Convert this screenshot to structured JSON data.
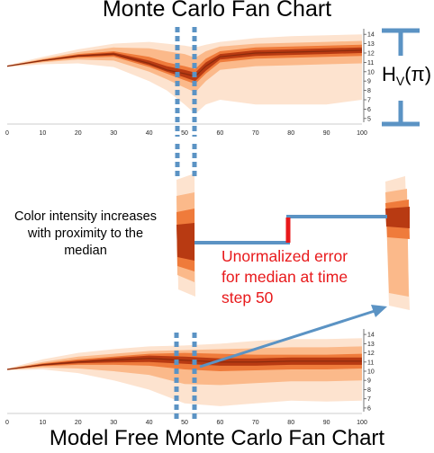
{
  "titles": {
    "top": "Monte Carlo Fan Chart",
    "bottom": "Model Free Monte Carlo Fan Chart"
  },
  "annotations": {
    "color_intensity_lines": [
      "Color intensity increases",
      "with proximity to the",
      "median"
    ],
    "error_lines": [
      "Unormalized error",
      "for median at time",
      "step 50"
    ],
    "hv_main": "H",
    "hv_sub": "V",
    "hv_tail": "(π)"
  },
  "colors": {
    "band_outer": "#fde3cf",
    "band_mid": "#fbb98a",
    "band_inner": "#ef7b3b",
    "band_core": "#b83a12",
    "highlight_blue": "#5b93c4",
    "error_red": "#e8191b"
  },
  "chart_data": [
    {
      "type": "area",
      "title": "Monte Carlo Fan Chart",
      "x_ticks": [
        0,
        10,
        20,
        30,
        40,
        50,
        60,
        70,
        80,
        90,
        100
      ],
      "y_ticks": [
        5,
        6,
        7,
        8,
        9,
        10,
        11,
        12,
        13,
        14
      ],
      "xlim": [
        0,
        100
      ],
      "ylim": [
        4.6,
        14.6
      ],
      "highlight_x": [
        48,
        53
      ],
      "x": [
        0,
        10,
        20,
        30,
        40,
        45,
        50,
        53,
        56,
        60,
        70,
        80,
        90,
        100
      ],
      "median": [
        10.6,
        11.2,
        11.7,
        11.9,
        10.9,
        10.2,
        9.8,
        9.5,
        10.6,
        11.6,
        12.0,
        12.1,
        12.2,
        12.3
      ],
      "bands": [
        {
          "name": "outer",
          "lower": [
            10.5,
            10.8,
            10.9,
            10.5,
            9.0,
            8.0,
            6.5,
            5.5,
            6.5,
            7.0,
            6.5,
            6.5,
            6.5,
            7.0
          ],
          "upper": [
            10.7,
            11.6,
            12.4,
            13.0,
            13.2,
            13.0,
            12.8,
            12.6,
            12.9,
            13.2,
            13.6,
            13.8,
            13.9,
            14.0
          ]
        },
        {
          "name": "mid",
          "lower": [
            10.55,
            11.0,
            11.3,
            11.2,
            10.0,
            9.2,
            8.3,
            7.8,
            9.0,
            10.2,
            10.6,
            10.7,
            10.8,
            10.9
          ],
          "upper": [
            10.65,
            11.4,
            12.1,
            12.6,
            12.5,
            12.2,
            11.9,
            11.5,
            12.2,
            12.7,
            13.0,
            13.1,
            13.2,
            13.3
          ]
        },
        {
          "name": "inner",
          "lower": [
            10.58,
            11.1,
            11.5,
            11.6,
            10.5,
            9.8,
            9.1,
            8.7,
            9.8,
            11.0,
            11.4,
            11.5,
            11.6,
            11.7
          ],
          "upper": [
            10.62,
            11.3,
            11.9,
            12.2,
            11.6,
            11.0,
            10.6,
            10.3,
            11.4,
            12.2,
            12.6,
            12.7,
            12.8,
            12.9
          ]
        },
        {
          "name": "core",
          "lower": [
            10.59,
            11.15,
            11.6,
            11.75,
            10.7,
            10.0,
            9.4,
            9.0,
            10.1,
            11.3,
            11.7,
            11.8,
            11.9,
            12.0
          ],
          "upper": [
            10.61,
            11.25,
            11.8,
            12.05,
            11.2,
            10.6,
            10.2,
            9.9,
            11.0,
            11.9,
            12.3,
            12.4,
            12.5,
            12.6
          ]
        }
      ]
    },
    {
      "type": "area",
      "title": "Model Free Monte Carlo Fan Chart",
      "x_ticks": [
        0,
        10,
        20,
        30,
        40,
        50,
        60,
        70,
        80,
        90,
        100
      ],
      "y_ticks": [
        6,
        7,
        8,
        9,
        10,
        11,
        12,
        13,
        14
      ],
      "xlim": [
        0,
        100
      ],
      "ylim": [
        5.6,
        14.6
      ],
      "highlight_x": [
        48,
        53
      ],
      "x": [
        0,
        10,
        20,
        30,
        40,
        50,
        60,
        70,
        80,
        90,
        100
      ],
      "median": [
        10.2,
        10.7,
        11.0,
        11.2,
        11.4,
        11.2,
        11.0,
        11.0,
        11.1,
        11.1,
        11.1
      ],
      "bands": [
        {
          "name": "outer",
          "lower": [
            10.1,
            10.2,
            9.8,
            9.0,
            8.0,
            6.5,
            6.2,
            6.5,
            6.8,
            6.7,
            6.8
          ],
          "upper": [
            10.3,
            11.3,
            12.0,
            12.4,
            12.7,
            12.8,
            13.0,
            13.3,
            13.5,
            13.5,
            13.6
          ]
        },
        {
          "name": "mid",
          "lower": [
            10.15,
            10.4,
            10.3,
            10.0,
            9.6,
            8.6,
            8.5,
            8.7,
            8.9,
            8.9,
            9.0
          ],
          "upper": [
            10.25,
            11.0,
            11.6,
            11.9,
            12.2,
            12.3,
            12.4,
            12.5,
            12.6,
            12.6,
            12.7
          ]
        },
        {
          "name": "inner",
          "lower": [
            10.18,
            10.55,
            10.7,
            10.7,
            10.6,
            10.2,
            10.0,
            10.1,
            10.2,
            10.2,
            10.3
          ],
          "upper": [
            10.22,
            10.85,
            11.3,
            11.6,
            11.9,
            12.0,
            11.9,
            11.8,
            11.8,
            11.8,
            11.9
          ]
        },
        {
          "name": "core",
          "lower": [
            10.19,
            10.62,
            10.85,
            10.95,
            11.0,
            10.8,
            10.6,
            10.6,
            10.7,
            10.7,
            10.7
          ],
          "upper": [
            10.21,
            10.78,
            11.15,
            11.45,
            11.7,
            11.6,
            11.4,
            11.4,
            11.5,
            11.5,
            11.5
          ]
        }
      ]
    }
  ]
}
